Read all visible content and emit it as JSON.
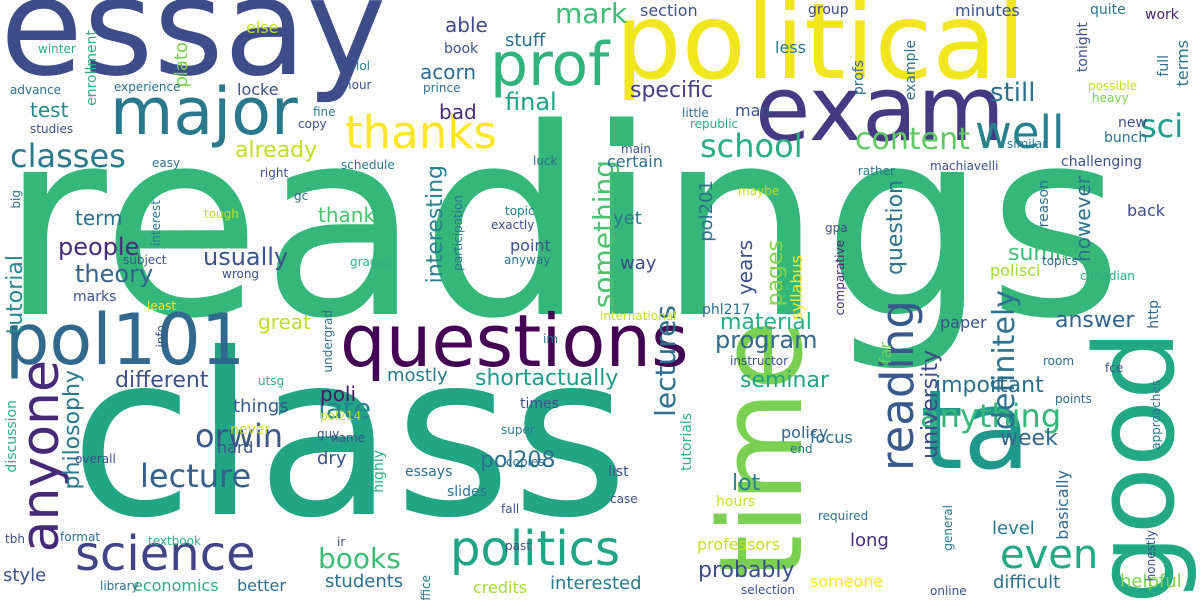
{
  "words": [
    {
      "text": "readings",
      "color": "#35b779"
    },
    {
      "text": "class",
      "color": "#21a585"
    },
    {
      "text": "essay",
      "color": "#3e4c8a"
    },
    {
      "text": "political",
      "color": "#f1e51d"
    },
    {
      "text": "exam",
      "color": "#443983"
    },
    {
      "text": "time",
      "color": "#7ad151"
    },
    {
      "text": "questions",
      "color": "#440154"
    },
    {
      "text": "ta",
      "color": "#1f988b"
    },
    {
      "text": "good",
      "color": "#22a884"
    },
    {
      "text": "major",
      "color": "#2a788e"
    },
    {
      "text": "pol101",
      "color": "#31688e"
    },
    {
      "text": "prof",
      "color": "#2fb47c"
    },
    {
      "text": "anyone",
      "color": "#482878"
    },
    {
      "text": "science",
      "color": "#414487"
    },
    {
      "text": "politics",
      "color": "#20a486"
    },
    {
      "text": "thanks",
      "color": "#fde725"
    },
    {
      "text": "well",
      "color": "#26828e"
    },
    {
      "text": "reading",
      "color": "#38598c"
    },
    {
      "text": "even",
      "color": "#22a884"
    },
    {
      "text": "classes",
      "color": "#2a788e"
    },
    {
      "text": "lecture",
      "color": "#355f8d"
    },
    {
      "text": "orwin",
      "color": "#39568c"
    },
    {
      "text": "school",
      "color": "#29af7f"
    },
    {
      "text": "anything",
      "color": "#35b779"
    },
    {
      "text": "content",
      "color": "#5ec962"
    },
    {
      "text": "definitely",
      "color": "#2c728e"
    },
    {
      "text": "sci",
      "color": "#1e9c89"
    },
    {
      "text": "books",
      "color": "#3dbc74"
    },
    {
      "text": "late",
      "color": "#25848e"
    },
    {
      "text": "something",
      "color": "#4ac16d"
    },
    {
      "text": "lectures",
      "color": "#2d708e"
    },
    {
      "text": "mark",
      "color": "#3dbc74"
    },
    {
      "text": "still",
      "color": "#2c728e"
    },
    {
      "text": "theory",
      "color": "#33638d"
    },
    {
      "text": "people",
      "color": "#472d7b"
    },
    {
      "text": "usually",
      "color": "#3b528b"
    },
    {
      "text": "program",
      "color": "#31688e"
    },
    {
      "text": "probably",
      "color": "#3e4c8a"
    },
    {
      "text": "summer",
      "color": "#3dbc74"
    },
    {
      "text": "question",
      "color": "#2c728e"
    },
    {
      "text": "final",
      "color": "#1fa188"
    },
    {
      "text": "specific",
      "color": "#433e85"
    },
    {
      "text": "interesting",
      "color": "#25838e"
    },
    {
      "text": "already",
      "color": "#bddf26"
    },
    {
      "text": "philosophy",
      "color": "#2a788e"
    },
    {
      "text": "tutorial",
      "color": "#23898e"
    },
    {
      "text": "different",
      "color": "#3b528b"
    },
    {
      "text": "shortactually",
      "color": "#1f998a"
    },
    {
      "text": "seminar",
      "color": "#20a486"
    },
    {
      "text": "important",
      "color": "#2d708e"
    },
    {
      "text": "week",
      "color": "#31688e"
    },
    {
      "text": "university",
      "color": "#3e4a89"
    },
    {
      "text": "answer",
      "color": "#33638d"
    },
    {
      "text": "pol208",
      "color": "#2d708e"
    },
    {
      "text": "lot",
      "color": "#27808e"
    },
    {
      "text": "material",
      "color": "#26ad81"
    },
    {
      "text": "thank",
      "color": "#4ac16d"
    },
    {
      "text": "term",
      "color": "#2d708e"
    },
    {
      "text": "test",
      "color": "#23898e"
    },
    {
      "text": "great",
      "color": "#bddf26"
    },
    {
      "text": "able",
      "color": "#3e4a89"
    },
    {
      "text": "acorn",
      "color": "#31688e"
    },
    {
      "text": "bad",
      "color": "#472a7a"
    },
    {
      "text": "stuff",
      "color": "#2c728e"
    },
    {
      "text": "mostly",
      "color": "#2a788e"
    },
    {
      "text": "poli",
      "color": "#481769"
    },
    {
      "text": "things",
      "color": "#38598c"
    },
    {
      "text": "dry",
      "color": "#3b528b"
    },
    {
      "text": "students",
      "color": "#2d708e"
    },
    {
      "text": "style",
      "color": "#3b528b"
    },
    {
      "text": "economics",
      "color": "#2ab07f"
    },
    {
      "text": "better",
      "color": "#2e6e8e"
    },
    {
      "text": "credits",
      "color": "#a5db36"
    },
    {
      "text": "interested",
      "color": "#2a788e"
    },
    {
      "text": "professors",
      "color": "#c2df23"
    },
    {
      "text": "someone",
      "color": "#fde725"
    },
    {
      "text": "long",
      "color": "#472d7b"
    },
    {
      "text": "difficult",
      "color": "#2c728e"
    },
    {
      "text": "helpful",
      "color": "#7ad151"
    },
    {
      "text": "level",
      "color": "#2a788e"
    },
    {
      "text": "basically",
      "color": "#31688e"
    },
    {
      "text": "pages",
      "color": "#84d44b"
    },
    {
      "text": "years",
      "color": "#3b528b"
    },
    {
      "text": "pol201",
      "color": "#2d708e"
    },
    {
      "text": "yet",
      "color": "#2a788e"
    },
    {
      "text": "way",
      "color": "#3e4a89"
    },
    {
      "text": "point",
      "color": "#3b528b"
    },
    {
      "text": "certain",
      "color": "#2d708e"
    },
    {
      "text": "however",
      "color": "#2c728e"
    },
    {
      "text": "back",
      "color": "#3e4c8a"
    },
    {
      "text": "paper",
      "color": "#3b528b"
    },
    {
      "text": "polisci",
      "color": "#a0da39"
    },
    {
      "text": "focus",
      "color": "#2d708e"
    },
    {
      "text": "policy",
      "color": "#32648e"
    },
    {
      "text": "far",
      "color": "#70cf57"
    },
    {
      "text": "http",
      "color": "#31688e"
    },
    {
      "text": "terms",
      "color": "#2d708e"
    },
    {
      "text": "work",
      "color": "#481f70"
    },
    {
      "text": "full",
      "color": "#2c728e"
    },
    {
      "text": "tonight",
      "color": "#3b528b"
    },
    {
      "text": "quite",
      "color": "#2a788e"
    },
    {
      "text": "group",
      "color": "#3e4c8a"
    },
    {
      "text": "minutes",
      "color": "#3b528b"
    },
    {
      "text": "section",
      "color": "#3b528b"
    },
    {
      "text": "example",
      "color": "#2d708e"
    },
    {
      "text": "less",
      "color": "#2a788e"
    },
    {
      "text": "profs",
      "color": "#2d708e"
    },
    {
      "text": "possible",
      "color": "#bddf26"
    },
    {
      "text": "heavy",
      "color": "#7ad151"
    },
    {
      "text": "similar",
      "color": "#2a788e"
    },
    {
      "text": "new",
      "color": "#3e4c8a"
    },
    {
      "text": "bunch",
      "color": "#2d708e"
    },
    {
      "text": "challenging",
      "color": "#3b528b"
    },
    {
      "text": "machiavelli",
      "color": "#3b528b"
    },
    {
      "text": "rather",
      "color": "#2a788e"
    },
    {
      "text": "reason",
      "color": "#2c728e"
    },
    {
      "text": "topics",
      "color": "#31688e"
    },
    {
      "text": "canadian",
      "color": "#2ab07f"
    },
    {
      "text": "gpa",
      "color": "#3e4c8a"
    },
    {
      "text": "comparative",
      "color": "#482878"
    },
    {
      "text": "syllabus",
      "color": "#fde725"
    },
    {
      "text": "phl217",
      "color": "#2d708e"
    },
    {
      "text": "topic",
      "color": "#2a788e"
    },
    {
      "text": "exactly",
      "color": "#3e4c8a"
    },
    {
      "text": "anyway",
      "color": "#2d708e"
    },
    {
      "text": "participation",
      "color": "#2a788e"
    },
    {
      "text": "maybe",
      "color": "#bddf26"
    },
    {
      "text": "man",
      "color": "#3b528b"
    },
    {
      "text": "little",
      "color": "#2d708e"
    },
    {
      "text": "republic",
      "color": "#2ab07f"
    },
    {
      "text": "main",
      "color": "#3b528b"
    },
    {
      "text": "luck",
      "color": "#2d708e"
    },
    {
      "text": "schedule",
      "color": "#2a788e"
    },
    {
      "text": "plato",
      "color": "#7ad151"
    },
    {
      "text": "else",
      "color": "#bddf26"
    },
    {
      "text": "book",
      "color": "#3b528b"
    },
    {
      "text": "enrollment",
      "color": "#2ab07f"
    },
    {
      "text": "locke",
      "color": "#3b528b"
    },
    {
      "text": "experience",
      "color": "#2d708e"
    },
    {
      "text": "lol",
      "color": "#2a788e"
    },
    {
      "text": "hour",
      "color": "#3b528b"
    },
    {
      "text": "prince",
      "color": "#2d708e"
    },
    {
      "text": "fine",
      "color": "#2a788e"
    },
    {
      "text": "copy",
      "color": "#3b528b"
    },
    {
      "text": "winter",
      "color": "#2ab07f"
    },
    {
      "text": "advance",
      "color": "#2d708e"
    },
    {
      "text": "studies",
      "color": "#3b528b"
    },
    {
      "text": "easy",
      "color": "#2d708e"
    },
    {
      "text": "subject",
      "color": "#3b528b"
    },
    {
      "text": "interest",
      "color": "#2a788e"
    },
    {
      "text": "big",
      "color": "#2d708e"
    },
    {
      "text": "right",
      "color": "#3b528b"
    },
    {
      "text": "gc",
      "color": "#2d708e"
    },
    {
      "text": "tough",
      "color": "#bddf26"
    },
    {
      "text": "wrong",
      "color": "#3b528b"
    },
    {
      "text": "grades",
      "color": "#2ab07f"
    },
    {
      "text": "least",
      "color": "#fde725"
    },
    {
      "text": "marks",
      "color": "#3b528b"
    },
    {
      "text": "international",
      "color": "#bddf26"
    },
    {
      "text": "undergrad",
      "color": "#2d708e"
    },
    {
      "text": "info",
      "color": "#3b528b"
    },
    {
      "text": "im",
      "color": "#2d708e"
    },
    {
      "text": "instructor",
      "color": "#3b528b"
    },
    {
      "text": "utsg",
      "color": "#2ab07f"
    },
    {
      "text": "pol214",
      "color": "#bddf26"
    },
    {
      "text": "guy",
      "color": "#3b528b"
    },
    {
      "text": "times",
      "color": "#3b528b"
    },
    {
      "text": "room",
      "color": "#2d708e"
    },
    {
      "text": "fce",
      "color": "#3b528b"
    },
    {
      "text": "points",
      "color": "#2d708e"
    },
    {
      "text": "approaches",
      "color": "#2a788e"
    },
    {
      "text": "discussion",
      "color": "#2ab07f"
    },
    {
      "text": "overall",
      "color": "#3b528b"
    },
    {
      "text": "never",
      "color": "#bddf26"
    },
    {
      "text": "hard",
      "color": "#3b528b"
    },
    {
      "text": "essays",
      "color": "#2d708e"
    },
    {
      "text": "super",
      "color": "#2a788e"
    },
    {
      "text": "list",
      "color": "#3b528b"
    },
    {
      "text": "tutorials",
      "color": "#2ab07f"
    },
    {
      "text": "end",
      "color": "#2d708e"
    },
    {
      "text": "name",
      "color": "#3b528b"
    },
    {
      "text": "highly",
      "color": "#2ab07f"
    },
    {
      "text": "copies",
      "color": "#2d708e"
    },
    {
      "text": "slides",
      "color": "#2d708e"
    },
    {
      "text": "fall",
      "color": "#3b528b"
    },
    {
      "text": "case",
      "color": "#3b528b"
    },
    {
      "text": "hours",
      "color": "#bddf26"
    },
    {
      "text": "required",
      "color": "#2d708e"
    },
    {
      "text": "general",
      "color": "#2a788e"
    },
    {
      "text": "honestly",
      "color": "#3b528b"
    },
    {
      "text": "format",
      "color": "#2d708e"
    },
    {
      "text": "tbh",
      "color": "#3b528b"
    },
    {
      "text": "textbook",
      "color": "#2ab07f"
    },
    {
      "text": "ir",
      "color": "#3b528b"
    },
    {
      "text": "past",
      "color": "#3b528b"
    },
    {
      "text": "library",
      "color": "#2d708e"
    },
    {
      "text": "office",
      "color": "#2a788e"
    },
    {
      "text": "selection",
      "color": "#3b528b"
    },
    {
      "text": "online",
      "color": "#3b528b"
    }
  ]
}
